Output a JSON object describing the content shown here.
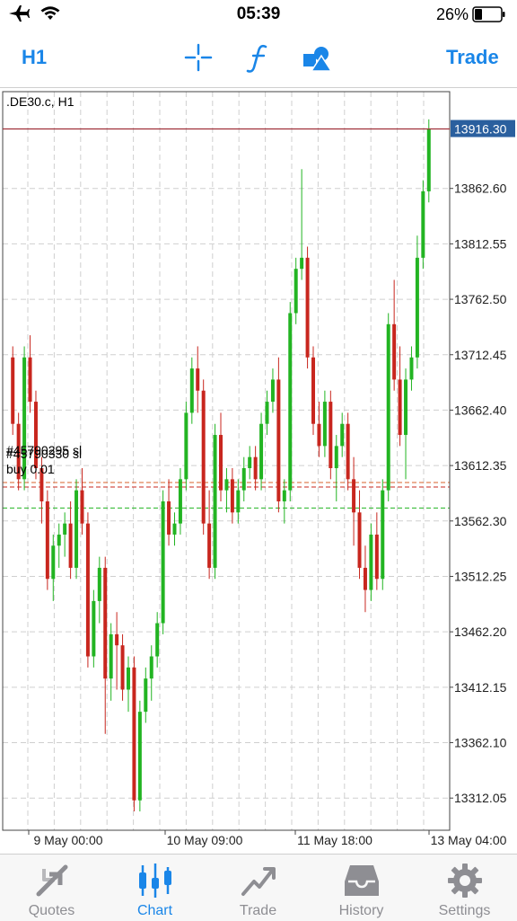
{
  "status_bar": {
    "time": "05:39",
    "battery_percent": "26%"
  },
  "toolbar": {
    "timeframe": "H1",
    "trade_label": "Trade",
    "icons": [
      "crosshair-icon",
      "indicators-icon",
      "objects-icon"
    ]
  },
  "colors": {
    "accent": "#1a86e8",
    "bull": "#22b422",
    "bear": "#c8261e",
    "price_line": "#a0303a",
    "price_box": "#2a5f9e"
  },
  "chart": {
    "symbol_label": ".DE30.c, H1",
    "current_price": "13916.30",
    "order_labels": [
      "#45790295 sl",
      "#45790330 sl",
      "buy 0.01"
    ],
    "price_ticks": [
      "13862.60",
      "13812.55",
      "13762.50",
      "13712.45",
      "13662.40",
      "13612.35",
      "13562.30",
      "13512.25",
      "13462.20",
      "13412.15",
      "13362.10",
      "13312.05"
    ],
    "time_ticks": [
      "9 May 00:00",
      "10 May 09:00",
      "11 May 18:00",
      "13 May 04:00"
    ]
  },
  "chart_data": {
    "type": "candlestick",
    "symbol": ".DE30.c",
    "timeframe": "H1",
    "ylim": [
      13283,
      13950
    ],
    "last_price": 13916.3,
    "order_levels": [
      13597,
      13593,
      13574
    ],
    "candles": [
      [
        13710,
        13720,
        13640,
        13650
      ],
      [
        13650,
        13660,
        13590,
        13600
      ],
      [
        13600,
        13720,
        13590,
        13710
      ],
      [
        13710,
        13730,
        13660,
        13670
      ],
      [
        13670,
        13680,
        13600,
        13610
      ],
      [
        13610,
        13620,
        13560,
        13580
      ],
      [
        13580,
        13590,
        13500,
        13510
      ],
      [
        13510,
        13550,
        13490,
        13540
      ],
      [
        13540,
        13560,
        13520,
        13550
      ],
      [
        13550,
        13570,
        13530,
        13560
      ],
      [
        13560,
        13580,
        13510,
        13520
      ],
      [
        13520,
        13600,
        13510,
        13590
      ],
      [
        13590,
        13610,
        13550,
        13560
      ],
      [
        13560,
        13570,
        13430,
        13440
      ],
      [
        13440,
        13500,
        13430,
        13490
      ],
      [
        13490,
        13530,
        13470,
        13520
      ],
      [
        13520,
        13530,
        13370,
        13420
      ],
      [
        13420,
        13470,
        13400,
        13460
      ],
      [
        13460,
        13480,
        13410,
        13450
      ],
      [
        13450,
        13460,
        13400,
        13410
      ],
      [
        13410,
        13440,
        13390,
        13430
      ],
      [
        13430,
        13440,
        13300,
        13310
      ],
      [
        13310,
        13400,
        13300,
        13390
      ],
      [
        13390,
        13430,
        13380,
        13420
      ],
      [
        13420,
        13450,
        13400,
        13440
      ],
      [
        13440,
        13480,
        13430,
        13470
      ],
      [
        13470,
        13590,
        13460,
        13580
      ],
      [
        13580,
        13600,
        13540,
        13550
      ],
      [
        13550,
        13570,
        13540,
        13560
      ],
      [
        13560,
        13610,
        13550,
        13600
      ],
      [
        13600,
        13670,
        13590,
        13660
      ],
      [
        13660,
        13710,
        13650,
        13700
      ],
      [
        13700,
        13720,
        13660,
        13680
      ],
      [
        13680,
        13690,
        13550,
        13560
      ],
      [
        13560,
        13590,
        13510,
        13520
      ],
      [
        13520,
        13650,
        13510,
        13640
      ],
      [
        13640,
        13660,
        13580,
        13590
      ],
      [
        13590,
        13610,
        13570,
        13600
      ],
      [
        13600,
        13610,
        13560,
        13570
      ],
      [
        13570,
        13600,
        13560,
        13590
      ],
      [
        13590,
        13620,
        13580,
        13610
      ],
      [
        13610,
        13630,
        13600,
        13620
      ],
      [
        13620,
        13630,
        13590,
        13600
      ],
      [
        13600,
        13660,
        13590,
        13650
      ],
      [
        13650,
        13680,
        13640,
        13670
      ],
      [
        13670,
        13700,
        13660,
        13690
      ],
      [
        13690,
        13710,
        13570,
        13580
      ],
      [
        13580,
        13600,
        13560,
        13590
      ],
      [
        13590,
        13760,
        13580,
        13750
      ],
      [
        13750,
        13800,
        13740,
        13790
      ],
      [
        13790,
        13880,
        13780,
        13800
      ],
      [
        13800,
        13810,
        13700,
        13710
      ],
      [
        13710,
        13720,
        13640,
        13650
      ],
      [
        13650,
        13670,
        13620,
        13630
      ],
      [
        13630,
        13680,
        13620,
        13670
      ],
      [
        13670,
        13680,
        13600,
        13610
      ],
      [
        13610,
        13640,
        13580,
        13630
      ],
      [
        13630,
        13660,
        13620,
        13650
      ],
      [
        13650,
        13660,
        13590,
        13600
      ],
      [
        13600,
        13620,
        13540,
        13570
      ],
      [
        13570,
        13590,
        13510,
        13520
      ],
      [
        13520,
        13540,
        13480,
        13500
      ],
      [
        13500,
        13560,
        13490,
        13550
      ],
      [
        13550,
        13570,
        13500,
        13510
      ],
      [
        13510,
        13600,
        13500,
        13590
      ],
      [
        13590,
        13750,
        13580,
        13740
      ],
      [
        13740,
        13780,
        13680,
        13690
      ],
      [
        13690,
        13720,
        13630,
        13640
      ],
      [
        13640,
        13700,
        13600,
        13690
      ],
      [
        13690,
        13720,
        13680,
        13710
      ],
      [
        13710,
        13820,
        13700,
        13800
      ],
      [
        13800,
        13870,
        13790,
        13860
      ],
      [
        13860,
        13925,
        13850,
        13916
      ]
    ]
  }
}
